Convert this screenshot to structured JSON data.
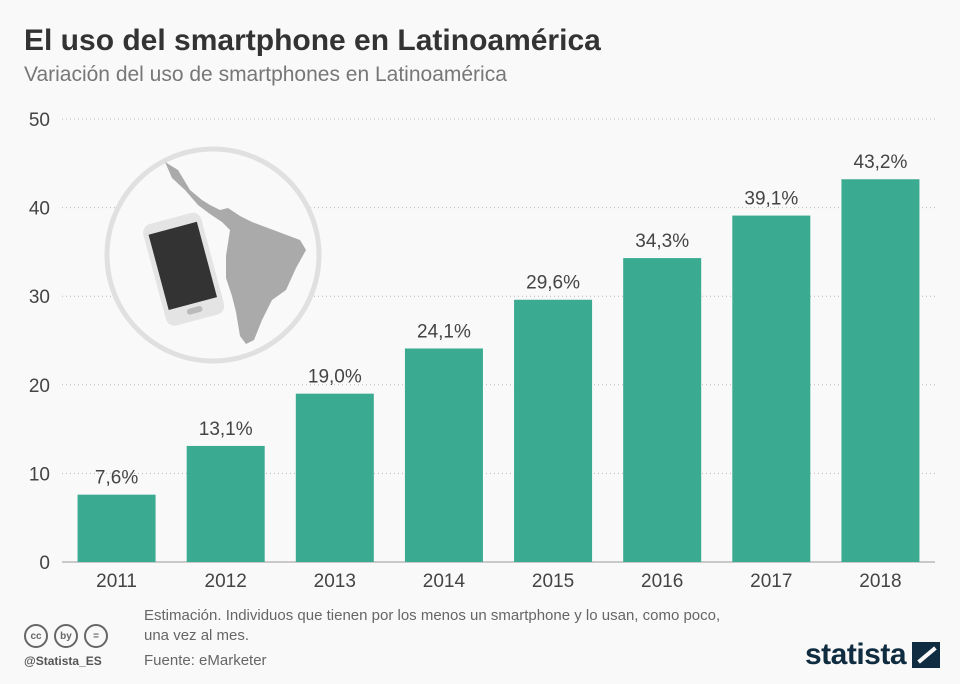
{
  "header": {
    "title": "El uso del smartphone en Latinoamérica",
    "subtitle": "Variación del uso de smartphones en Latinoamérica"
  },
  "chart_data": {
    "type": "bar",
    "title": "El uso del smartphone en Latinoamérica",
    "subtitle": "Variación del uso de smartphones en Latinoamérica",
    "categories": [
      "2011",
      "2012",
      "2013",
      "2014",
      "2015",
      "2016",
      "2017",
      "2018"
    ],
    "values": [
      7.6,
      13.1,
      19.0,
      24.1,
      29.6,
      34.3,
      39.1,
      43.2
    ],
    "data_labels": [
      "7,6%",
      "13,1%",
      "19,0%",
      "24,1%",
      "29,6%",
      "34,3%",
      "39,1%",
      "43,2%"
    ],
    "ylim": [
      0,
      50
    ],
    "yticks": [
      "0",
      "10",
      "20",
      "30",
      "40",
      "50"
    ],
    "grid": true,
    "bar_color": "#3aaa91"
  },
  "footer": {
    "note": "Estimación. Individuos que tienen por los menos un smartphone y lo usan, como poco, una vez al mes.",
    "source": "Fuente: eMarketer",
    "handle": "@Statista_ES",
    "license_icons": [
      "cc",
      "by",
      "="
    ],
    "logo": "statista"
  }
}
